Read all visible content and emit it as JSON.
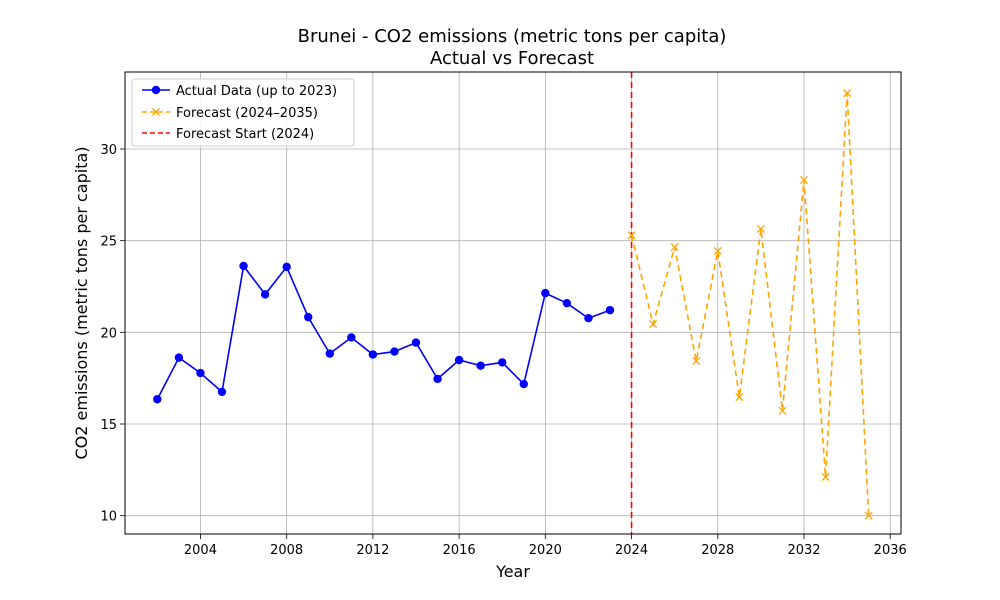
{
  "chart_data": {
    "type": "line",
    "title": "Brunei - CO2 emissions (metric tons per capita)",
    "subtitle": "Actual vs Forecast",
    "xlabel": "Year",
    "ylabel": "CO2 emissions (metric tons per capita)",
    "xlim": [
      2000.5,
      2036.5
    ],
    "ylim": [
      9,
      34.2
    ],
    "xticks": [
      2004,
      2008,
      2012,
      2016,
      2020,
      2024,
      2028,
      2032,
      2036
    ],
    "yticks": [
      10,
      15,
      20,
      25,
      30
    ],
    "grid": true,
    "legend_position": "top-left",
    "forecast_start": {
      "x": 2024,
      "name": "Forecast Start (2024)",
      "color": "#ff0000"
    },
    "series": [
      {
        "name": "Actual Data (up to 2023)",
        "color": "#0000ff",
        "style": "solid",
        "marker": "circle",
        "x": [
          2002,
          2003,
          2004,
          2005,
          2006,
          2007,
          2008,
          2009,
          2010,
          2011,
          2012,
          2013,
          2014,
          2015,
          2016,
          2017,
          2018,
          2019,
          2020,
          2021,
          2022,
          2023
        ],
        "y": [
          16.35,
          18.62,
          17.78,
          16.75,
          23.62,
          22.07,
          23.57,
          20.83,
          18.84,
          19.72,
          18.79,
          18.95,
          19.44,
          17.46,
          18.49,
          18.18,
          18.36,
          17.18,
          22.14,
          21.59,
          20.77,
          21.21
        ]
      },
      {
        "name": "Forecast (2024–2035)",
        "color": "#ffa500",
        "style": "dashed",
        "marker": "x",
        "x": [
          2024,
          2025,
          2026,
          2027,
          2028,
          2029,
          2030,
          2031,
          2032,
          2033,
          2034,
          2035
        ],
        "y": [
          25.3,
          20.45,
          24.65,
          18.44,
          24.44,
          16.47,
          25.64,
          15.72,
          28.31,
          12.11,
          33.05,
          10.0
        ]
      }
    ]
  }
}
